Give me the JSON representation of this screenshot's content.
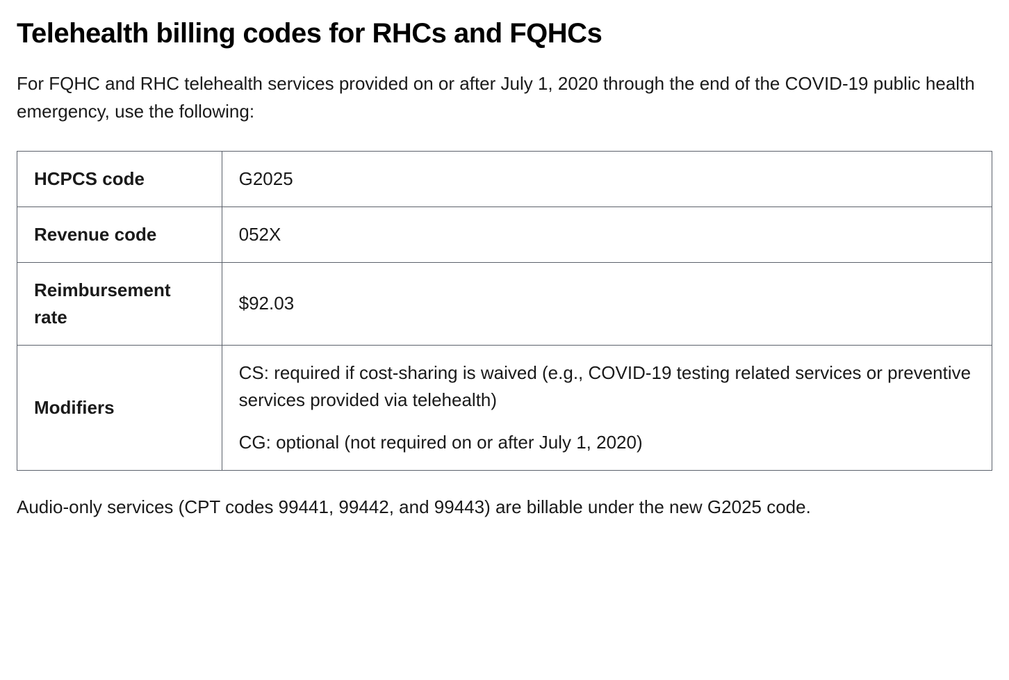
{
  "page": {
    "title": "Telehealth billing codes for RHCs and FQHCs",
    "intro": "For FQHC and RHC telehealth services provided on or after July 1, 2020 through the end of the COVID-19 public health emergency, use the following:",
    "outro": "Audio-only services (CPT codes 99441, 99442, and 99443) are billable under the new G2025 code."
  },
  "table": {
    "type": "table",
    "border_color": "#5b616b",
    "background_color": "#ffffff",
    "label_fontweight": 700,
    "value_fontweight": 400,
    "cell_fontsize": 26,
    "rows": [
      {
        "label": "HCPCS code",
        "value": "G2025"
      },
      {
        "label": "Revenue code",
        "value": "052X"
      },
      {
        "label": "Reimbursement rate",
        "value": "$92.03"
      }
    ],
    "modifiers": {
      "label": "Modifiers",
      "items": [
        "CS: required if cost-sharing is waived (e.g., COVID-19 testing related services or preventive services provided via telehealth)",
        "CG: optional (not required on or after July 1, 2020)"
      ]
    }
  },
  "typography": {
    "heading_fontsize": 40,
    "heading_fontweight": 800,
    "body_fontsize": 26,
    "text_color": "#1a1a1a",
    "heading_color": "#000000"
  }
}
